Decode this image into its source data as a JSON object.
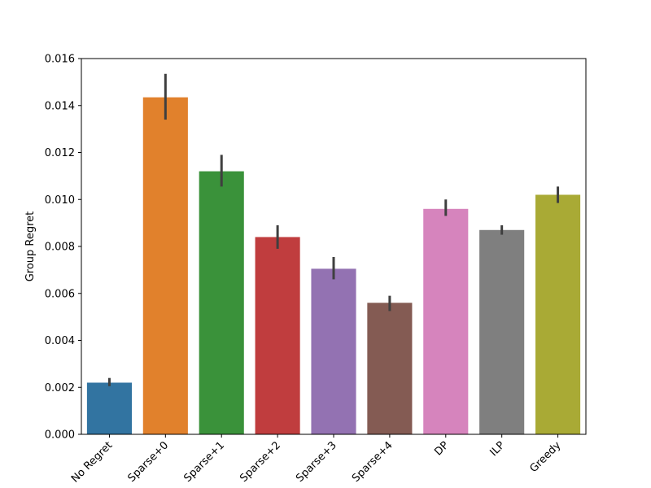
{
  "chart_data": {
    "type": "bar",
    "title": "",
    "xlabel": "",
    "ylabel": "Group Regret",
    "ylim": [
      0,
      0.016
    ],
    "yticks": [
      "0.000",
      "0.002",
      "0.004",
      "0.006",
      "0.008",
      "0.010",
      "0.012",
      "0.014",
      "0.016"
    ],
    "grid": false,
    "categories": [
      "No Regret",
      "Sparse+0",
      "Sparse+1",
      "Sparse+2",
      "Sparse+3",
      "Sparse+4",
      "DP",
      "ILP",
      "Greedy"
    ],
    "values": [
      0.0022,
      0.01435,
      0.0112,
      0.0084,
      0.00705,
      0.0056,
      0.0096,
      0.0087,
      0.0102
    ],
    "error_low": [
      0.00205,
      0.0134,
      0.01055,
      0.0079,
      0.0066,
      0.00525,
      0.0093,
      0.0085,
      0.00985
    ],
    "error_high": [
      0.0024,
      0.01535,
      0.0119,
      0.0089,
      0.00755,
      0.0059,
      0.01,
      0.0089,
      0.01055
    ],
    "colors": [
      "#3274a1",
      "#e1812c",
      "#3a923a",
      "#c03d3e",
      "#9372b2",
      "#845b53",
      "#d684bd",
      "#7f7f7f",
      "#a9aa35"
    ],
    "error_color": "#3f3f3f"
  }
}
